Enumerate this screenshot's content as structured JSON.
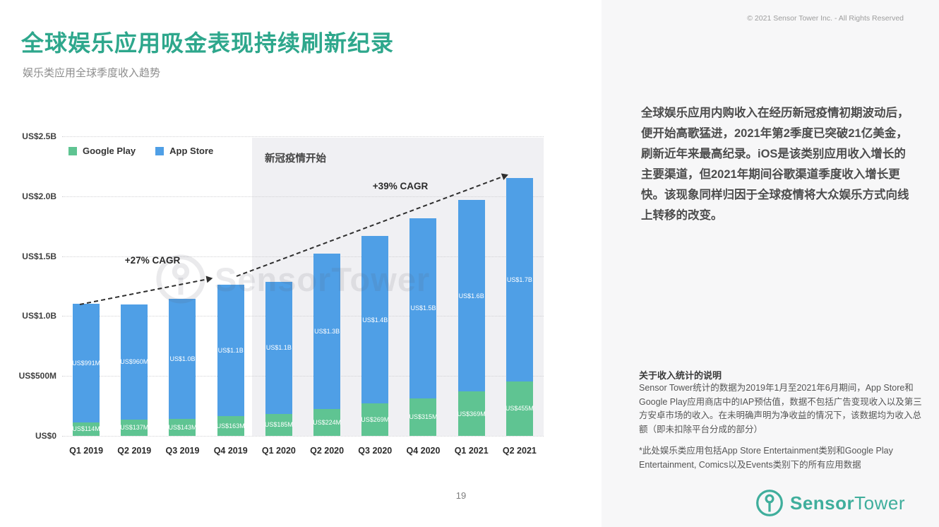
{
  "page": {
    "title": "全球娱乐应用吸金表现持续刷新纪录",
    "subtitle": "娱乐类应用全球季度收入趋势",
    "copyright": "© 2021 Sensor Tower Inc. - All Rights Reserved",
    "page_number": "19"
  },
  "colors": {
    "accent_teal": "#2ea78c",
    "logo_teal": "#3fae9c",
    "google_play_green": "#5fc492",
    "app_store_blue": "#4f9fe6",
    "covid_region_gray": "#f0f0f3"
  },
  "chart_data": {
    "type": "bar",
    "stacked": true,
    "title": "娱乐类应用全球季度收入趋势",
    "categories": [
      "Q1 2019",
      "Q2 2019",
      "Q3 2019",
      "Q4 2019",
      "Q1 2020",
      "Q2 2020",
      "Q3 2020",
      "Q4 2020",
      "Q1 2021",
      "Q2 2021"
    ],
    "series": [
      {
        "name": "Google Play",
        "color": "#5fc492",
        "values_musd": [
          114,
          137,
          143,
          163,
          185,
          224,
          269,
          315,
          369,
          455
        ],
        "labels": [
          "US$114M",
          "US$137M",
          "US$143M",
          "US$163M",
          "US$185M",
          "US$224M",
          "US$269M",
          "US$315M",
          "US$369M",
          "US$455M"
        ]
      },
      {
        "name": "App Store",
        "color": "#4f9fe6",
        "values_musd": [
          991,
          960,
          1000,
          1100,
          1100,
          1300,
          1400,
          1500,
          1600,
          1700
        ],
        "labels": [
          "US$991M",
          "US$960M",
          "US$1.0B",
          "US$1.1B",
          "US$1.1B",
          "US$1.3B",
          "US$1.4B",
          "US$1.5B",
          "US$1.6B",
          "US$1.7B"
        ]
      }
    ],
    "y_ticks": [
      "US$2.5B",
      "US$2.0B",
      "US$1.5B",
      "US$1.0B",
      "US$500M",
      "US$0"
    ],
    "ylim_musd": [
      0,
      2500
    ],
    "grid": "dotted horizontal",
    "legend_position": "top-left inside plot",
    "annotations": {
      "covid_label": "新冠疫情开始",
      "covid_start_category": "Q1 2020",
      "cagr_2019": "+27% CAGR",
      "cagr_2020_2021": "+39% CAGR"
    },
    "watermark": "SensorTower"
  },
  "sidebar": {
    "paragraph": "全球娱乐应用内购收入在经历新冠疫情初期波动后，便开始高歌猛进，2021年第2季度已突破21亿美金，刷新近年来最高纪录。iOS是该类别应用收入增长的主要渠道，但2021年期间谷歌渠道季度收入增长更快。该现象同样归因于全球疫情将大众娱乐方式向线上转移的改变。",
    "notes_heading": "关于收入统计的说明",
    "notes_body": "Sensor Tower统计的数据为2019年1月至2021年6月期间，App Store和Google Play应用商店中的IAP预估值，数据不包括广告变现收入以及第三方安卓市场的收入。在未明确声明为净收益的情况下，该数据均为收入总额（即未扣除平台分成的部分）",
    "footnote": "*此处娱乐类应用包括App Store Entertainment类别和Google Play Entertainment, Comics以及Events类别下的所有应用数据"
  },
  "logo": {
    "bold": "Sensor",
    "regular": "Tower"
  }
}
